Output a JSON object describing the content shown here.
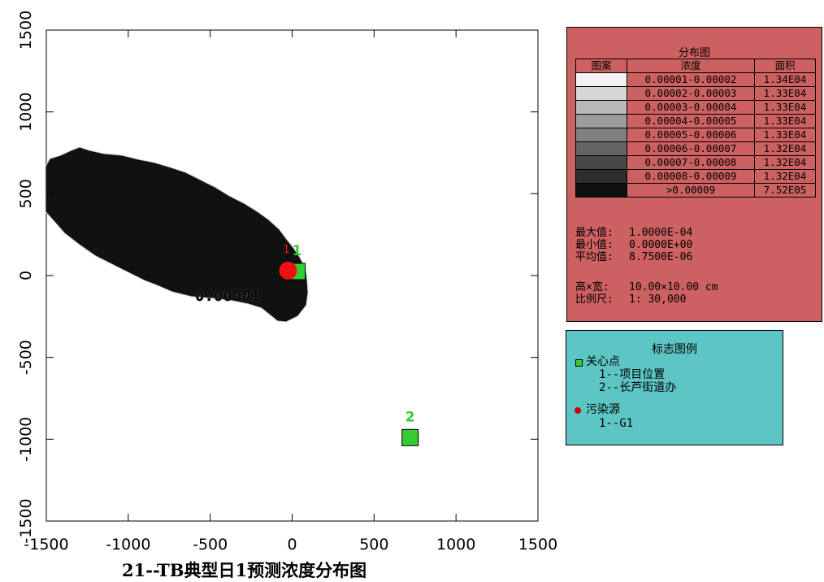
{
  "title": "21--TB典型日1预测浓度分布图",
  "plot": {
    "x_ticks": [
      "-1500",
      "-1000",
      "-500",
      "0",
      "500",
      "1000",
      "1500"
    ],
    "y_ticks": [
      "1500",
      "1000",
      "500",
      "0",
      "-500",
      "-1000",
      "-1500"
    ],
    "contour_label": "0.00001",
    "plume_color": "#111111"
  },
  "markers": [
    {
      "id": "1",
      "type": "关心点",
      "x": 30,
      "y": 25,
      "color": "#33cc33"
    },
    {
      "id": "2",
      "type": "关心点",
      "x": 720,
      "y": -990,
      "color": "#33cc33"
    },
    {
      "id": "1",
      "type": "污染源",
      "x": -25,
      "y": 30,
      "color": "#ee1111"
    }
  ],
  "legend": {
    "title": "分布图",
    "headers": [
      "图案",
      "浓度",
      "面积"
    ],
    "rows": [
      {
        "color": "#f2f2f2",
        "range": "0.00001-0.00002",
        "area": "1.34E04"
      },
      {
        "color": "#d6d6d6",
        "range": "0.00002-0.00003",
        "area": "1.33E04"
      },
      {
        "color": "#b9b9b9",
        "range": "0.00003-0.00004",
        "area": "1.33E04"
      },
      {
        "color": "#9c9c9c",
        "range": "0.00004-0.00005",
        "area": "1.33E04"
      },
      {
        "color": "#808080",
        "range": "0.00005-0.00006",
        "area": "1.33E04"
      },
      {
        "color": "#646464",
        "range": "0.00006-0.00007",
        "area": "1.32E04"
      },
      {
        "color": "#484848",
        "range": "0.00007-0.00008",
        "area": "1.32E04"
      },
      {
        "color": "#2e2e2e",
        "range": "0.00008-0.00009",
        "area": "1.32E04"
      },
      {
        "color": "#111111",
        "range": ">0.00009",
        "area": "7.52E05"
      }
    ],
    "stats": [
      {
        "label": "最大值:",
        "value": "1.0000E-04"
      },
      {
        "label": "最小值:",
        "value": "0.0000E+00"
      },
      {
        "label": "平均值:",
        "value": "8.7500E-06"
      }
    ],
    "dims": [
      {
        "label": "高×宽:",
        "value": "10.00×10.00 cm"
      },
      {
        "label": "比例尺:",
        "value": "1: 30,000"
      }
    ]
  },
  "marker_legend": {
    "title": "标志图例",
    "poi_label": "关心点",
    "poi_items": [
      "1--项目位置",
      "2--长芦街道办"
    ],
    "source_label": "污染源",
    "source_items": [
      "1--G1"
    ]
  }
}
